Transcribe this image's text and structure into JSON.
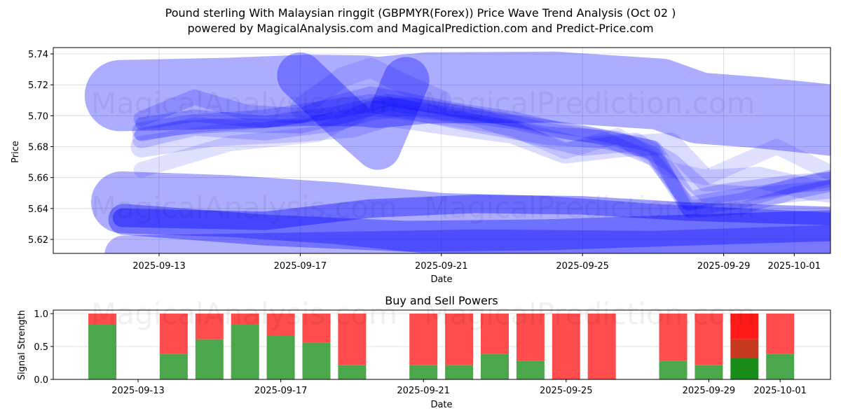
{
  "title_line1": "Pound sterling With Malaysian ringgit (GBPMYR(Forex)) Price Wave Trend Analysis (Oct 02 )",
  "title_line2": "powered by MagicalAnalysis.com and MagicalPrediction.com and Predict-Price.com",
  "watermarks": [
    "MagicalAnalysis.com",
    "MagicalPrediction.com"
  ],
  "chart_data": [
    {
      "type": "area",
      "title": "",
      "xlabel": "Date",
      "ylabel": "Price",
      "ylim": [
        5.611,
        5.744
      ],
      "xlim": [
        "2025-09-09T16:00",
        "2025-10-01T22:00"
      ],
      "yticks": [
        "5.62",
        "5.64",
        "5.66",
        "5.68",
        "5.70",
        "5.72",
        "5.74"
      ],
      "ytick_values": [
        5.62,
        5.64,
        5.66,
        5.68,
        5.7,
        5.72,
        5.74
      ],
      "xticks": [
        "2025-09-13",
        "2025-09-17",
        "2025-09-21",
        "2025-09-25",
        "2025-09-29",
        "2025-10-01"
      ],
      "grid": true,
      "band_color": "#0000ff",
      "series": [
        {
          "name": "upper-wide-band",
          "opacity": 0.32,
          "width_price": 0.046,
          "x": [
            -0.1,
            0.9,
            3.0,
            5.2,
            6.8,
            7.2,
            8.6,
            12.2,
            15.2,
            16.3,
            18.0,
            19.7,
            20.1
          ],
          "y": [
            5.713,
            5.7135,
            5.7145,
            5.7165,
            5.716,
            5.715,
            5.718,
            5.7185,
            5.714,
            5.705,
            5.702,
            5.698,
            5.697
          ]
        },
        {
          "name": "v-dip-band",
          "opacity": 0.32,
          "width_price": 0.03,
          "x": [
            5.0,
            6.2,
            7.2,
            8.0
          ],
          "y": [
            5.726,
            5.7,
            5.68,
            5.723
          ]
        },
        {
          "name": "lower-wide-band",
          "opacity": 0.32,
          "width_price": 0.04,
          "x": [
            -0.05,
            3.0,
            6.0,
            9.0,
            12.0,
            15.0,
            20.3
          ],
          "y": [
            5.644,
            5.6415,
            5.637,
            5.63,
            5.628,
            5.623,
            5.617
          ]
        },
        {
          "name": "lower-dark-band",
          "opacity": 0.38,
          "width_price": 0.012,
          "x": [
            -0.05,
            4.0,
            7.0,
            10.0,
            13.0,
            16.0,
            20.3
          ],
          "y": [
            5.634,
            5.632,
            5.64,
            5.643,
            5.642,
            5.638,
            5.635
          ]
        },
        {
          "name": "lower-mid-band",
          "opacity": 0.35,
          "width_price": 0.02,
          "x": [
            0.0,
            4.0,
            8.0,
            12.0,
            16.0,
            20.3
          ],
          "y": [
            5.633,
            5.626,
            5.622,
            5.623,
            5.626,
            5.629
          ]
        },
        {
          "name": "bottom-band",
          "opacity": 0.3,
          "width_price": 0.025,
          "x": [
            0.0,
            5.0,
            10.0,
            15.0,
            20.3
          ],
          "y": [
            5.61,
            5.612,
            5.614,
            5.613,
            5.617
          ]
        },
        {
          "name": "wave-1",
          "opacity": 0.18,
          "width_price": 0.012,
          "x": [
            0.5,
            2.0,
            4.0,
            6.0,
            7.0,
            8.0,
            10.0,
            12.0,
            13.5,
            15.0,
            16.0,
            17.0,
            19.0,
            20.3
          ],
          "y": [
            5.69,
            5.695,
            5.698,
            5.705,
            5.708,
            5.704,
            5.695,
            5.687,
            5.685,
            5.678,
            5.645,
            5.65,
            5.656,
            5.658
          ]
        },
        {
          "name": "wave-2",
          "opacity": 0.18,
          "width_price": 0.01,
          "x": [
            0.5,
            2.0,
            3.5,
            5.0,
            6.0,
            7.0,
            8.0,
            9.5,
            11.0,
            12.5,
            14.0,
            15.0,
            16.0,
            17.5,
            19.0,
            20.3
          ],
          "y": [
            5.698,
            5.712,
            5.702,
            5.7,
            5.708,
            5.714,
            5.71,
            5.703,
            5.698,
            5.69,
            5.685,
            5.675,
            5.64,
            5.645,
            5.655,
            5.66
          ]
        },
        {
          "name": "wave-3",
          "opacity": 0.16,
          "width_price": 0.012,
          "x": [
            0.5,
            2.0,
            4.0,
            6.0,
            7.0,
            8.0,
            10.0,
            11.5,
            13.0,
            14.5,
            15.5,
            16.5,
            18.0,
            20.3
          ],
          "y": [
            5.685,
            5.693,
            5.69,
            5.696,
            5.703,
            5.706,
            5.699,
            5.688,
            5.68,
            5.683,
            5.67,
            5.65,
            5.648,
            5.653
          ]
        },
        {
          "name": "wave-4",
          "opacity": 0.14,
          "width_price": 0.014,
          "x": [
            0.5,
            2.5,
            5.0,
            6.5,
            7.5,
            9.0,
            11.0,
            12.5,
            14.0,
            15.5,
            16.5,
            18.0,
            19.5,
            20.3
          ],
          "y": [
            5.68,
            5.687,
            5.69,
            5.693,
            5.7,
            5.695,
            5.689,
            5.676,
            5.68,
            5.682,
            5.658,
            5.66,
            5.652,
            5.65
          ]
        },
        {
          "name": "wave-5",
          "opacity": 0.12,
          "width_price": 0.01,
          "x": [
            0.5,
            3.0,
            5.5,
            7.0,
            9.0,
            11.0,
            12.5,
            14.0,
            15.5,
            16.5,
            18.5,
            20.3
          ],
          "y": [
            5.665,
            5.682,
            5.688,
            5.705,
            5.699,
            5.692,
            5.677,
            5.687,
            5.665,
            5.66,
            5.68,
            5.66
          ]
        },
        {
          "name": "wave-6",
          "opacity": 0.2,
          "width_price": 0.008,
          "x": [
            0.5,
            2.0,
            4.0,
            6.0,
            7.5,
            9.0,
            11.0,
            13.0,
            15.0,
            16.0,
            17.5,
            19.0,
            20.3
          ],
          "y": [
            5.695,
            5.7,
            5.696,
            5.702,
            5.71,
            5.705,
            5.697,
            5.69,
            5.68,
            5.638,
            5.64,
            5.65,
            5.656
          ]
        },
        {
          "name": "wave-7",
          "opacity": 0.18,
          "width_price": 0.009,
          "x": [
            0.5,
            1.5,
            3.0,
            5.0,
            6.5,
            7.5,
            9.0,
            11.0,
            12.0,
            13.5,
            15.0,
            16.0,
            17.0,
            18.5,
            20.3
          ],
          "y": [
            5.688,
            5.692,
            5.694,
            5.693,
            5.701,
            5.708,
            5.702,
            5.696,
            5.691,
            5.686,
            5.672,
            5.643,
            5.647,
            5.652,
            5.662
          ]
        },
        {
          "name": "wave-8",
          "opacity": 0.12,
          "width_price": 0.013,
          "x": [
            5.0,
            6.2,
            7.0,
            7.8,
            9.0
          ],
          "y": [
            5.705,
            5.725,
            5.731,
            5.722,
            5.71
          ]
        }
      ]
    },
    {
      "type": "bar",
      "title": "Buy and Sell Powers",
      "xlabel": "Date",
      "ylabel": "Signal Strength",
      "ylim": [
        0,
        1.05
      ],
      "yticks": [
        "0.0",
        "0.5",
        "1.0"
      ],
      "ytick_values": [
        0,
        0.5,
        1.0
      ],
      "xticks": [
        "2025-09-13",
        "2025-09-17",
        "2025-09-21",
        "2025-09-25",
        "2025-09-29",
        "2025-10-01"
      ],
      "grid": true,
      "buy_color": "#4ca64c",
      "sell_color": "#ff4c4c",
      "categories": [
        "2025-09-12",
        "2025-09-14",
        "2025-09-15",
        "2025-09-16",
        "2025-09-17",
        "2025-09-18",
        "2025-09-19",
        "2025-09-21",
        "2025-09-22",
        "2025-09-23",
        "2025-09-24",
        "2025-09-25",
        "2025-09-26",
        "2025-09-28",
        "2025-09-29",
        "2025-09-30",
        "2025-10-01"
      ],
      "series": [
        {
          "name": "Buy",
          "values": [
            0.83,
            0.39,
            0.61,
            0.83,
            0.67,
            0.56,
            0.22,
            0.22,
            0.22,
            0.39,
            0.28,
            0.0,
            0.0,
            0.28,
            0.22,
            0.33,
            0.39
          ]
        },
        {
          "name": "Sell",
          "values": [
            0.17,
            0.61,
            0.39,
            0.17,
            0.33,
            0.44,
            0.78,
            0.78,
            0.78,
            0.61,
            0.72,
            1.0,
            1.0,
            0.72,
            0.78,
            0.67,
            0.61
          ]
        }
      ],
      "highlight": {
        "date": "2025-09-30",
        "buy_color": "#1a8c1a",
        "mid_color": "#c83a20",
        "mid_top": 0.61,
        "sell_color": "#ff1a1a"
      }
    }
  ]
}
